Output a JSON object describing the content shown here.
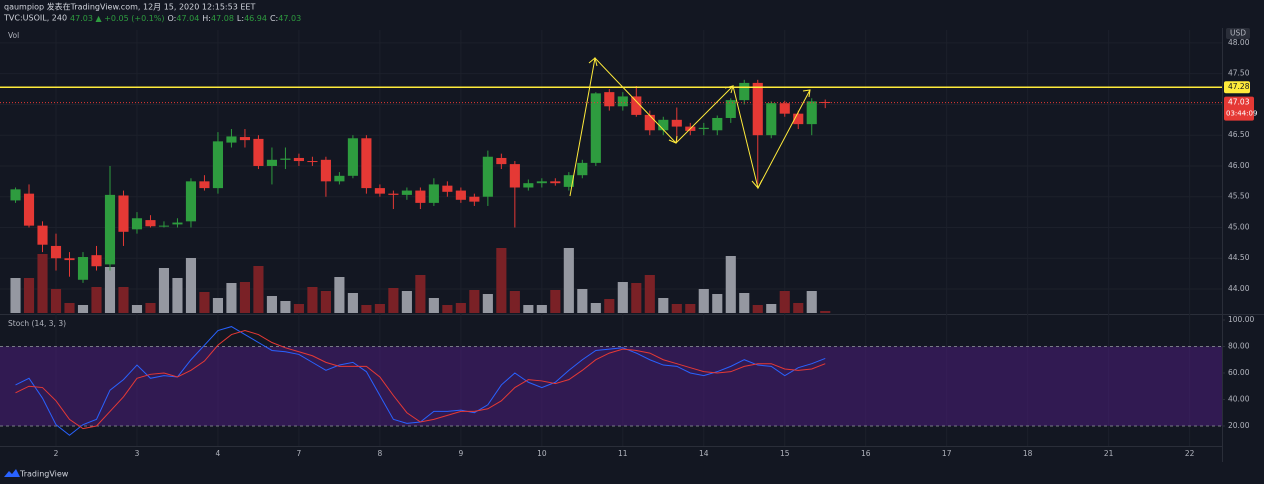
{
  "chart_data": {
    "type": "candlestick",
    "header": {
      "publisher": "qaumpiop 发表在TradingView.com, 12月 15, 2020 12:15:53 EET",
      "symbol": "TVC:USOIL, 240",
      "change": "47.03 ▲ +0.05 (+0.1%)",
      "ohlc": [
        {
          "label": "O:",
          "value": "47.04"
        },
        {
          "label": "H:",
          "value": "47.08"
        },
        {
          "label": "L:",
          "value": "46.94"
        },
        {
          "label": "C:",
          "value": "47.03"
        }
      ]
    },
    "currency": "USD",
    "up_color": "#2e9c3f",
    "down_color": "#e53935",
    "x": [
      0,
      1,
      2,
      3,
      4,
      5,
      6,
      7,
      8,
      9,
      10,
      11,
      12,
      13,
      14,
      15,
      16,
      17,
      18,
      19,
      20,
      21,
      22,
      23,
      24,
      25,
      26,
      27,
      28,
      29,
      30,
      31,
      32,
      33,
      34,
      35,
      36,
      37,
      38,
      39,
      40,
      41,
      42,
      43,
      44,
      45,
      46,
      47,
      48,
      49,
      50,
      51,
      52,
      53,
      54,
      55,
      56,
      57,
      58,
      59,
      60
    ],
    "open": [
      45.44,
      45.55,
      45.03,
      44.7,
      44.5,
      44.15,
      44.55,
      44.4,
      45.52,
      44.97,
      45.12,
      45.02,
      45.05,
      45.1,
      45.75,
      45.64,
      46.38,
      46.47,
      46.44,
      46.0,
      46.1,
      46.13,
      46.08,
      46.1,
      45.75,
      45.84,
      46.45,
      45.64,
      45.55,
      45.53,
      45.6,
      45.4,
      45.68,
      45.6,
      45.5,
      45.5,
      46.13,
      46.03,
      45.65,
      45.72,
      45.75,
      45.66,
      45.85,
      46.05,
      47.2,
      46.97,
      47.13,
      46.83,
      46.58,
      46.75,
      46.64,
      46.6,
      46.58,
      46.78,
      47.07,
      47.35,
      46.5,
      47.02,
      46.85,
      46.68,
      47.04
    ],
    "high": [
      45.65,
      45.7,
      45.1,
      44.9,
      44.6,
      44.6,
      44.7,
      46.0,
      45.6,
      45.25,
      45.2,
      45.1,
      45.15,
      45.8,
      45.85,
      46.55,
      46.6,
      46.6,
      46.5,
      46.3,
      46.3,
      46.2,
      46.15,
      46.15,
      45.9,
      46.5,
      46.5,
      45.7,
      45.6,
      45.65,
      45.65,
      45.8,
      45.75,
      45.65,
      45.55,
      46.25,
      46.2,
      46.08,
      45.78,
      45.8,
      45.8,
      45.9,
      46.1,
      47.2,
      47.25,
      47.2,
      47.3,
      46.9,
      46.8,
      46.95,
      46.7,
      46.7,
      46.82,
      47.1,
      47.4,
      47.4,
      47.05,
      47.06,
      46.9,
      47.1,
      47.08
    ],
    "low": [
      45.4,
      45.0,
      44.6,
      44.3,
      44.2,
      44.1,
      44.3,
      44.3,
      44.7,
      44.9,
      45.0,
      45.0,
      45.0,
      45.0,
      45.6,
      45.55,
      46.3,
      46.3,
      45.95,
      45.7,
      45.95,
      46.0,
      46.0,
      45.5,
      45.7,
      45.8,
      45.55,
      45.5,
      45.3,
      45.45,
      45.3,
      45.35,
      45.5,
      45.4,
      45.35,
      45.35,
      45.95,
      45.0,
      45.6,
      45.65,
      45.68,
      45.6,
      45.8,
      46.0,
      46.9,
      46.9,
      46.8,
      46.5,
      46.5,
      46.4,
      46.5,
      46.5,
      46.5,
      46.7,
      47.0,
      45.7,
      46.45,
      46.8,
      46.6,
      46.5,
      46.94
    ],
    "close": [
      45.62,
      45.03,
      44.72,
      44.5,
      44.47,
      44.52,
      44.37,
      45.53,
      44.93,
      45.15,
      45.02,
      45.03,
      45.08,
      45.75,
      45.64,
      46.4,
      46.48,
      46.42,
      46.0,
      46.1,
      46.12,
      46.08,
      46.07,
      45.75,
      45.84,
      46.45,
      45.64,
      45.55,
      45.53,
      45.6,
      45.4,
      45.7,
      45.58,
      45.45,
      45.42,
      46.15,
      46.03,
      45.65,
      45.72,
      45.75,
      45.72,
      45.85,
      46.05,
      47.18,
      46.97,
      47.13,
      46.83,
      46.58,
      46.75,
      46.64,
      46.57,
      46.62,
      46.78,
      47.07,
      47.35,
      46.5,
      47.02,
      46.85,
      46.68,
      47.05,
      47.03
    ],
    "xlim": [
      -1.15,
      89.4
    ],
    "xticks": [
      {
        "value": 3,
        "label": "2"
      },
      {
        "value": 9,
        "label": "3"
      },
      {
        "value": 15,
        "label": "4"
      },
      {
        "value": 21,
        "label": "7"
      },
      {
        "value": 27,
        "label": "8"
      },
      {
        "value": 33,
        "label": "9"
      },
      {
        "value": 39,
        "label": "10"
      },
      {
        "value": 45,
        "label": "11"
      },
      {
        "value": 51,
        "label": "14"
      },
      {
        "value": 57,
        "label": "15"
      },
      {
        "value": 63,
        "label": "16"
      },
      {
        "value": 69,
        "label": "17"
      },
      {
        "value": 75,
        "label": "18"
      },
      {
        "value": 81,
        "label": "21"
      },
      {
        "value": 87,
        "label": "22"
      }
    ],
    "ylim": [
      43.61,
      48.21
    ],
    "yticks": [
      {
        "value": 48,
        "label": "48.00"
      },
      {
        "value": 47.5,
        "label": "47.50"
      },
      {
        "value": 47,
        "label": "47.00"
      },
      {
        "value": 46.5,
        "label": "46.50"
      },
      {
        "value": 46,
        "label": "46.00"
      },
      {
        "value": 45.5,
        "label": "45.50"
      },
      {
        "value": 45,
        "label": "45.00"
      },
      {
        "value": 44.5,
        "label": "44.50"
      },
      {
        "value": 44,
        "label": "44.00"
      }
    ],
    "hline": {
      "value": 47.28,
      "label": "47.28",
      "color": "#ffeb3b"
    },
    "last_price": {
      "value": 47.03,
      "label": "47.03",
      "countdown": "03:44:09",
      "color": "#e53935"
    },
    "volume": {
      "name": "Vol",
      "ylim": [
        0,
        100
      ],
      "up_color": "#9598a1",
      "down_color": "#7a2126",
      "values": [
        35,
        35,
        59,
        24,
        10,
        8,
        26,
        46,
        26,
        8,
        10,
        45,
        35,
        55,
        21,
        15,
        30,
        31,
        47,
        17,
        12,
        9,
        26,
        22,
        36,
        20,
        8,
        9,
        25,
        22,
        38,
        15,
        8,
        10,
        23,
        19,
        65,
        22,
        8,
        8,
        23,
        65,
        24,
        10,
        14,
        31,
        30,
        38,
        15,
        9,
        9,
        24,
        19,
        57,
        20,
        8,
        9,
        22,
        10,
        22,
        2
      ]
    },
    "stoch": {
      "name": "Stoch (14, 3, 3)",
      "ylim": [
        4.9,
        103
      ],
      "yticks": [
        {
          "value": 100,
          "label": "100.00"
        },
        {
          "value": 80,
          "label": "80.00"
        },
        {
          "value": 60,
          "label": "60.00"
        },
        {
          "value": 40,
          "label": "40.00"
        },
        {
          "value": 20,
          "label": "20.00"
        }
      ],
      "band": {
        "upper": 80,
        "lower": 20,
        "color": "#4a1d7a"
      },
      "series": [
        {
          "color": "#2962ff",
          "values": [
            51,
            56,
            41,
            21,
            13,
            21,
            25,
            47,
            55,
            66,
            56,
            58,
            57,
            70,
            81,
            92,
            95,
            89,
            83,
            77,
            76,
            74,
            68,
            62,
            66,
            68,
            61,
            43,
            25,
            22,
            23,
            31,
            31,
            32,
            30,
            36,
            51,
            60,
            53,
            49,
            53,
            62,
            70,
            77,
            78,
            79,
            75,
            70,
            66,
            65,
            60,
            58,
            61,
            65,
            70,
            66,
            65,
            58,
            64,
            67,
            71
          ]
        },
        {
          "color": "#e53935",
          "values": [
            45,
            50,
            49,
            39,
            25,
            18,
            20,
            31,
            42,
            56,
            59,
            60,
            57,
            62,
            69,
            81,
            89,
            92,
            89,
            83,
            79,
            76,
            73,
            68,
            65,
            65,
            65,
            57,
            43,
            30,
            23,
            25,
            28,
            31,
            31,
            33,
            39,
            49,
            55,
            54,
            52,
            55,
            62,
            70,
            75,
            78,
            77,
            75,
            70,
            67,
            64,
            61,
            60,
            61,
            65,
            67,
            67,
            63,
            62,
            63,
            67
          ]
        }
      ]
    },
    "brand": "TradingView"
  }
}
